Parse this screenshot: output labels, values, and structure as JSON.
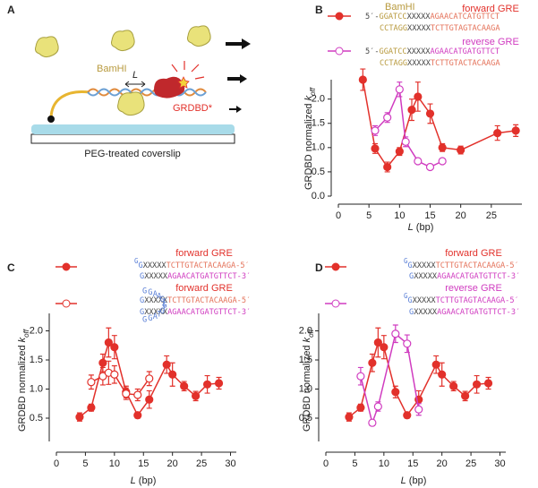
{
  "panel_a": {
    "label": "A",
    "bamhi": "BamHI",
    "l": "L",
    "grdbd": "GRDBD*",
    "coverslip": "PEG-treated coverslip"
  },
  "chart_data": [
    {
      "type": "line",
      "panel": "B",
      "xlabel": [
        "L",
        " (bp)"
      ],
      "ylabel": [
        "GRDBD normalized ",
        "k",
        "off"
      ],
      "xlim": [
        0,
        30
      ],
      "xticks": [
        0,
        5,
        10,
        15,
        20,
        25
      ],
      "ylim": [
        0,
        2.4
      ],
      "yticks": [
        {
          "value": 0,
          "label": "0.0"
        },
        0.5,
        {
          "value": 1,
          "label": "1.0"
        },
        1.5,
        {
          "value": 2,
          "label": "2.0"
        }
      ],
      "grid": false,
      "annotation": "BamHI",
      "annotation_color": "#b89a3e",
      "series": [
        {
          "name": "forward GRE",
          "color": "#e2312b",
          "marker": "filled",
          "x": [
            4,
            6,
            8,
            10,
            12,
            13,
            15,
            17,
            20,
            26,
            29
          ],
          "values": [
            2.4,
            0.98,
            0.6,
            0.92,
            1.78,
            2.05,
            1.7,
            1.0,
            0.95,
            1.3,
            1.35
          ],
          "errors": [
            0.22,
            0.1,
            0.1,
            0.08,
            0.22,
            0.3,
            0.2,
            0.08,
            0.08,
            0.15,
            0.12
          ],
          "legend_sequence": [
            [
              {
                "text": "5′-",
                "color": "#444"
              },
              {
                "text": "GGATCC",
                "color": "#b89a3e"
              },
              {
                "text": "XXXXX",
                "color": "#444"
              },
              {
                "text": "AGAACATCATGTTCT",
                "color": "#e4725a"
              }
            ],
            [
              {
                "text": "CCTAGG",
                "color": "#b89a3e"
              },
              {
                "text": "XXXXX",
                "color": "#444"
              },
              {
                "text": "TCTTGTAGTACAAGA",
                "color": "#e4725a"
              }
            ]
          ]
        },
        {
          "name": "reverse GRE",
          "color": "#d03cc0",
          "marker": "open",
          "x": [
            6,
            8,
            10,
            11,
            13,
            15,
            17
          ],
          "values": [
            1.35,
            1.62,
            2.2,
            1.12,
            0.72,
            0.6,
            0.72
          ],
          "errors": [
            0.1,
            0.1,
            0.15,
            0.1,
            0.05,
            0.04,
            0.05
          ],
          "legend_sequence": [
            [
              {
                "text": "5′-",
                "color": "#444"
              },
              {
                "text": "GGATCC",
                "color": "#b89a3e"
              },
              {
                "text": "XXXXX",
                "color": "#444"
              },
              {
                "text": "AGAACATGATGTTCT",
                "color": "#d03cc0"
              }
            ],
            [
              {
                "text": "CCTAGG",
                "color": "#b89a3e"
              },
              {
                "text": "XXXXX",
                "color": "#444"
              },
              {
                "text": "TCTTGTACTACAAGA",
                "color": "#e4725a"
              }
            ]
          ]
        }
      ]
    },
    {
      "type": "line",
      "panel": "C",
      "xlabel": [
        "L",
        " (bp)"
      ],
      "ylabel": [
        "GRDBD normalized ",
        "k",
        "off"
      ],
      "xlim": [
        0,
        31
      ],
      "xticks": [
        0,
        5,
        10,
        15,
        20,
        25,
        30
      ],
      "ylim": [
        0.1,
        2.3
      ],
      "yticks": [
        0.5,
        {
          "value": 1,
          "label": "1.0"
        },
        1.5,
        {
          "value": 2,
          "label": "2.0"
        }
      ],
      "grid": false,
      "series": [
        {
          "name": "forward GRE",
          "color": "#e2312b",
          "marker": "filled",
          "x": [
            4,
            6,
            8,
            9,
            10,
            12,
            14,
            16,
            19,
            20,
            22,
            24,
            26,
            28
          ],
          "values": [
            0.52,
            0.68,
            1.45,
            1.8,
            1.72,
            0.95,
            0.55,
            0.82,
            1.42,
            1.25,
            1.05,
            0.88,
            1.08,
            1.1
          ],
          "errors": [
            0.07,
            0.06,
            0.15,
            0.25,
            0.2,
            0.1,
            0.05,
            0.15,
            0.15,
            0.2,
            0.08,
            0.08,
            0.15,
            0.1
          ],
          "legend_sequence": [
            [
              {
                "text": "G",
                "color": "#5a7fd6",
                "superscript": true
              },
              {
                "text": "G",
                "color": "#5a7fd6"
              },
              {
                "text": "XXXXX",
                "color": "#444"
              },
              {
                "text": "TCTTGTACTACAAGA-5′",
                "color": "#e4725a"
              }
            ],
            [
              {
                "text": "G",
                "color": "#5a7fd6"
              },
              {
                "text": "XXXXX",
                "color": "#444"
              },
              {
                "text": "AGAACATGATGTTCT-3′",
                "color": "#d03cc0"
              }
            ]
          ]
        },
        {
          "name": "forward GRE",
          "color": "#e2312b",
          "marker": "open",
          "x": [
            6,
            8,
            9,
            10,
            12,
            14,
            16
          ],
          "values": [
            1.12,
            1.22,
            1.28,
            1.25,
            0.92,
            0.9,
            1.18
          ],
          "errors": [
            0.12,
            0.15,
            0.2,
            0.15,
            0.1,
            0.1,
            0.12
          ],
          "loop": [
            "G",
            "G",
            "A",
            "T",
            "G",
            "T",
            "G",
            "T",
            "G",
            "A",
            "A",
            "G",
            "G"
          ],
          "loop_color": "#5a7fd6",
          "legend_sequence": [
            [
              {
                "text": "G",
                "color": "#5a7fd6"
              },
              {
                "text": "XXXXX",
                "color": "#444"
              },
              {
                "text": "TCTTGTACTACAAGA-5′",
                "color": "#e4725a"
              }
            ],
            [
              {
                "text": "G",
                "color": "#5a7fd6"
              },
              {
                "text": "XXXXX",
                "color": "#444"
              },
              {
                "text": "AGAACATGATGTTCT-3′",
                "color": "#d03cc0"
              }
            ]
          ]
        }
      ]
    },
    {
      "type": "line",
      "panel": "D",
      "xlabel": [
        "L",
        " (bp)"
      ],
      "ylabel": [
        "GRDBD normalized ",
        "k",
        "off"
      ],
      "xlim": [
        0,
        31
      ],
      "xticks": [
        0,
        5,
        10,
        15,
        20,
        25,
        30
      ],
      "ylim": [
        0.1,
        2.3
      ],
      "yticks": [
        0.5,
        {
          "value": 1,
          "label": "1.0"
        },
        1.5,
        {
          "value": 2,
          "label": "2.0"
        }
      ],
      "grid": false,
      "series": [
        {
          "name": "forward GRE",
          "color": "#e2312b",
          "marker": "filled",
          "x": [
            4,
            6,
            8,
            9,
            10,
            12,
            14,
            16,
            19,
            20,
            22,
            24,
            26,
            28
          ],
          "values": [
            0.52,
            0.68,
            1.45,
            1.8,
            1.72,
            0.95,
            0.55,
            0.82,
            1.42,
            1.25,
            1.05,
            0.88,
            1.08,
            1.1
          ],
          "errors": [
            0.07,
            0.06,
            0.15,
            0.25,
            0.2,
            0.1,
            0.05,
            0.15,
            0.15,
            0.2,
            0.08,
            0.08,
            0.15,
            0.1
          ],
          "legend_sequence": [
            [
              {
                "text": "G",
                "color": "#5a7fd6",
                "superscript": true
              },
              {
                "text": "G",
                "color": "#5a7fd6"
              },
              {
                "text": "XXXXX",
                "color": "#444"
              },
              {
                "text": "TCTTGTACTACAAGA-5′",
                "color": "#e4725a"
              }
            ],
            [
              {
                "text": "G",
                "color": "#5a7fd6"
              },
              {
                "text": "XXXXX",
                "color": "#444"
              },
              {
                "text": "AGAACATGATGTTCT-3′",
                "color": "#d03cc0"
              }
            ]
          ]
        },
        {
          "name": "reverse GRE",
          "color": "#d03cc0",
          "marker": "open",
          "x": [
            6,
            8,
            9,
            12,
            14,
            16
          ],
          "values": [
            1.22,
            0.42,
            0.7,
            1.95,
            1.78,
            0.65
          ],
          "errors": [
            0.15,
            0.05,
            0.08,
            0.15,
            0.15,
            0.1
          ],
          "legend_sequence": [
            [
              {
                "text": "G",
                "color": "#5a7fd6",
                "superscript": true
              },
              {
                "text": "G",
                "color": "#5a7fd6"
              },
              {
                "text": "XXXXX",
                "color": "#444"
              },
              {
                "text": "TCTTGTAGTACAAGA-5′",
                "color": "#d03cc0"
              }
            ],
            [
              {
                "text": "G",
                "color": "#5a7fd6"
              },
              {
                "text": "XXXXX",
                "color": "#444"
              },
              {
                "text": "AGAACATGATGTTCT-3′",
                "color": "#d03cc0"
              }
            ]
          ]
        }
      ]
    }
  ]
}
